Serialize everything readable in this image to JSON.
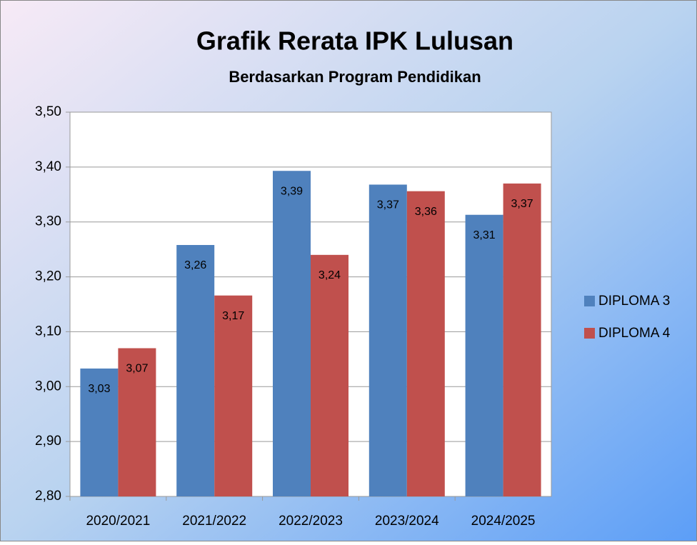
{
  "chart_data": {
    "type": "bar",
    "title": "Grafik Rerata IPK Lulusan",
    "subtitle": "Berdasarkan Program Pendidikan",
    "categories": [
      "2020/2021",
      "2021/2022",
      "2022/2023",
      "2023/2024",
      "2024/2025"
    ],
    "series": [
      {
        "name": "DIPLOMA 3",
        "color": "#4f81bd",
        "values": [
          3.033,
          3.258,
          3.393,
          3.368,
          3.313
        ],
        "value_labels": [
          "3,03",
          "3,26",
          "3,39",
          "3,37",
          "3,31"
        ]
      },
      {
        "name": "DIPLOMA 4",
        "color": "#c0504d",
        "values": [
          3.07,
          3.166,
          3.24,
          3.356,
          3.37
        ],
        "value_labels": [
          "3,07",
          "3,17",
          "3,24",
          "3,36",
          "3,37"
        ]
      }
    ],
    "ylim": [
      2.8,
      3.5
    ],
    "yticks": [
      {
        "value": 2.8,
        "label": "2,80"
      },
      {
        "value": 2.9,
        "label": "2,90"
      },
      {
        "value": 3.0,
        "label": "3,00"
      },
      {
        "value": 3.1,
        "label": "3,10"
      },
      {
        "value": 3.2,
        "label": "3,20"
      },
      {
        "value": 3.3,
        "label": "3,30"
      },
      {
        "value": 3.4,
        "label": "3,40"
      },
      {
        "value": 3.5,
        "label": "3,50"
      }
    ],
    "grid": true,
    "legend": "right"
  }
}
